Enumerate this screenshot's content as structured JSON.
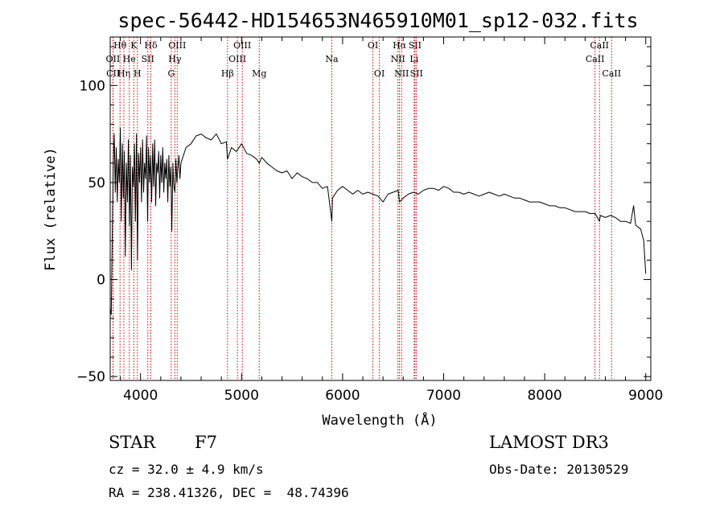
{
  "chart_data": {
    "type": "line",
    "title": "spec-56442-HD154653N465910M01_sp12-032.fits",
    "xlabel": "Wavelength (Å)",
    "ylabel": "Flux (relative)",
    "xlim": [
      3700,
      9050
    ],
    "ylim": [
      -52,
      125
    ],
    "x_ticks": [
      4000,
      5000,
      6000,
      7000,
      8000,
      9000
    ],
    "y_ticks": [
      -50,
      0,
      50,
      100
    ],
    "series": [
      {
        "name": "flux",
        "x": [
          3700,
          3710,
          3720,
          3730,
          3740,
          3750,
          3760,
          3770,
          3780,
          3790,
          3800,
          3810,
          3820,
          3830,
          3840,
          3850,
          3860,
          3870,
          3880,
          3890,
          3900,
          3910,
          3920,
          3930,
          3940,
          3950,
          3960,
          3970,
          3980,
          3990,
          4000,
          4010,
          4020,
          4030,
          4040,
          4050,
          4060,
          4070,
          4080,
          4090,
          4100,
          4110,
          4120,
          4130,
          4140,
          4150,
          4160,
          4170,
          4180,
          4190,
          4200,
          4210,
          4220,
          4230,
          4240,
          4250,
          4260,
          4270,
          4280,
          4290,
          4300,
          4310,
          4320,
          4330,
          4340,
          4350,
          4360,
          4370,
          4380,
          4390,
          4400,
          4450,
          4500,
          4550,
          4600,
          4650,
          4700,
          4750,
          4800,
          4850,
          4861,
          4900,
          4950,
          5000,
          5050,
          5100,
          5150,
          5175,
          5200,
          5250,
          5300,
          5350,
          5400,
          5450,
          5500,
          5550,
          5600,
          5650,
          5700,
          5750,
          5800,
          5850,
          5893,
          5900,
          5950,
          6000,
          6050,
          6100,
          6150,
          6200,
          6250,
          6300,
          6350,
          6400,
          6450,
          6500,
          6550,
          6563,
          6600,
          6650,
          6700,
          6750,
          6800,
          6850,
          6900,
          6950,
          7000,
          7050,
          7100,
          7150,
          7200,
          7250,
          7300,
          7350,
          7400,
          7450,
          7500,
          7550,
          7600,
          7650,
          7700,
          7750,
          7800,
          7850,
          7900,
          7950,
          8000,
          8050,
          8100,
          8150,
          8200,
          8250,
          8300,
          8350,
          8400,
          8450,
          8500,
          8542,
          8550,
          8600,
          8650,
          8700,
          8750,
          8800,
          8850,
          8880,
          8900,
          8950,
          8980,
          9000
        ],
        "y": [
          -15,
          -18,
          20,
          60,
          75,
          45,
          68,
          40,
          62,
          50,
          78,
          30,
          70,
          42,
          66,
          12,
          60,
          40,
          72,
          28,
          64,
          5,
          58,
          48,
          70,
          30,
          75,
          10,
          65,
          50,
          68,
          40,
          72,
          45,
          60,
          52,
          74,
          30,
          68,
          50,
          64,
          40,
          70,
          48,
          72,
          38,
          60,
          55,
          66,
          42,
          64,
          50,
          68,
          45,
          60,
          52,
          62,
          40,
          64,
          48,
          58,
          25,
          60,
          48,
          45,
          62,
          50,
          58,
          64,
          52,
          60,
          68,
          70,
          74,
          75,
          73,
          72,
          75,
          70,
          71,
          62,
          68,
          66,
          70,
          65,
          64,
          62,
          60,
          63,
          60,
          58,
          56,
          55,
          56,
          52,
          55,
          53,
          52,
          50,
          50,
          47,
          48,
          30,
          42,
          46,
          48,
          46,
          44,
          46,
          44,
          45,
          44,
          43,
          40,
          44,
          45,
          46,
          40,
          42,
          44,
          45,
          44,
          46,
          47,
          47,
          46,
          48,
          47,
          45,
          45,
          44,
          45,
          44,
          43,
          44,
          45,
          44,
          43,
          44,
          43,
          42,
          42,
          41,
          40,
          40,
          40,
          39,
          38,
          38,
          37,
          37,
          36,
          35,
          35,
          35,
          34,
          34,
          30,
          33,
          32,
          33,
          32,
          30,
          30,
          29,
          38,
          28,
          26,
          20,
          3
        ]
      }
    ],
    "spectral_lines": [
      {
        "name": "Hθ",
        "x": 3797,
        "row": 1
      },
      {
        "name": "OII",
        "x": 3727,
        "row": 2
      },
      {
        "name": "CII",
        "x": 3729,
        "row": 3
      },
      {
        "name": "Hη",
        "x": 3835,
        "row": 3
      },
      {
        "name": "He",
        "x": 3889,
        "row": 2
      },
      {
        "name": "K",
        "x": 3934,
        "row": 1
      },
      {
        "name": "H",
        "x": 3969,
        "row": 3
      },
      {
        "name": "Hδ",
        "x": 4102,
        "row": 1
      },
      {
        "name": "SII",
        "x": 4072,
        "row": 2
      },
      {
        "name": "OIII",
        "x": 4363,
        "row": 1
      },
      {
        "name": "Hγ",
        "x": 4340,
        "row": 2
      },
      {
        "name": "G",
        "x": 4304,
        "row": 3
      },
      {
        "name": "Hβ",
        "x": 4861,
        "row": 3
      },
      {
        "name": "OIII",
        "x": 5007,
        "row": 1
      },
      {
        "name": "OIII",
        "x": 4959,
        "row": 2
      },
      {
        "name": "Mg",
        "x": 5175,
        "row": 3
      },
      {
        "name": "Na",
        "x": 5893,
        "row": 2
      },
      {
        "name": "OI",
        "x": 6300,
        "row": 1
      },
      {
        "name": "OI",
        "x": 6364,
        "row": 3
      },
      {
        "name": "Hα",
        "x": 6563,
        "row": 1
      },
      {
        "name": "NII",
        "x": 6548,
        "row": 2
      },
      {
        "name": "NII",
        "x": 6584,
        "row": 3
      },
      {
        "name": "SII",
        "x": 6716,
        "row": 1
      },
      {
        "name": "Li",
        "x": 6708,
        "row": 2
      },
      {
        "name": "SII",
        "x": 6731,
        "row": 3
      },
      {
        "name": "CaII",
        "x": 8542,
        "row": 1
      },
      {
        "name": "CaII",
        "x": 8498,
        "row": 2
      },
      {
        "name": "CaII",
        "x": 8662,
        "row": 3
      }
    ]
  },
  "info": {
    "class_label": "STAR",
    "subclass": "F7",
    "cz": "cz = 32.0 ± 4.9 km/s",
    "coords": "RA = 238.41326, DEC =  48.74396",
    "survey": "LAMOST DR3",
    "obs_date": "Obs-Date: 20130529"
  },
  "colors": {
    "spectrum": "#000000",
    "line_markers": "#cc0000"
  }
}
